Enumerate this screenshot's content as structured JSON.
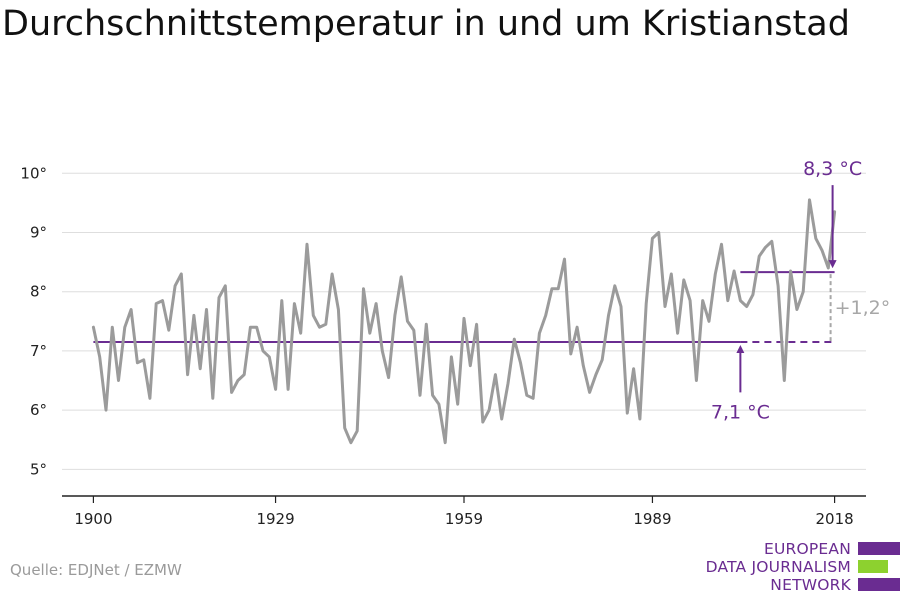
{
  "chart_data": {
    "type": "line",
    "title": "Durchschnittstemperatur in und um Kristianstad",
    "xlabel": "",
    "ylabel": "",
    "x": [
      1900,
      1901,
      1902,
      1903,
      1904,
      1905,
      1906,
      1907,
      1908,
      1909,
      1910,
      1911,
      1912,
      1913,
      1914,
      1915,
      1916,
      1917,
      1918,
      1919,
      1920,
      1921,
      1922,
      1923,
      1924,
      1925,
      1926,
      1927,
      1928,
      1929,
      1930,
      1931,
      1932,
      1933,
      1934,
      1935,
      1936,
      1937,
      1938,
      1939,
      1940,
      1941,
      1942,
      1943,
      1944,
      1945,
      1946,
      1947,
      1948,
      1949,
      1950,
      1951,
      1952,
      1953,
      1954,
      1955,
      1956,
      1957,
      1958,
      1959,
      1960,
      1961,
      1962,
      1963,
      1964,
      1965,
      1966,
      1967,
      1968,
      1969,
      1970,
      1971,
      1972,
      1973,
      1974,
      1975,
      1976,
      1977,
      1978,
      1979,
      1980,
      1981,
      1982,
      1983,
      1984,
      1985,
      1986,
      1987,
      1988,
      1989,
      1990,
      1991,
      1992,
      1993,
      1994,
      1995,
      1996,
      1997,
      1998,
      1999,
      2000,
      2001,
      2002,
      2003,
      2004,
      2005,
      2006,
      2007,
      2008,
      2009,
      2010,
      2011,
      2012,
      2013,
      2014,
      2015,
      2016,
      2017,
      2018
    ],
    "series": [
      {
        "name": "",
        "values": [
          7.4,
          6.9,
          6.0,
          7.4,
          6.5,
          7.4,
          7.7,
          6.8,
          6.85,
          6.2,
          7.8,
          7.85,
          7.35,
          8.1,
          8.3,
          6.6,
          7.6,
          6.7,
          7.7,
          6.2,
          7.9,
          8.1,
          6.3,
          6.5,
          6.6,
          7.4,
          7.4,
          7.0,
          6.9,
          6.35,
          7.85,
          6.35,
          7.8,
          7.3,
          8.8,
          7.6,
          7.4,
          7.45,
          8.3,
          7.7,
          5.7,
          5.45,
          5.65,
          8.05,
          7.3,
          7.8,
          7.0,
          6.55,
          7.6,
          8.25,
          7.5,
          7.35,
          6.25,
          7.45,
          6.25,
          6.1,
          5.45,
          6.9,
          6.1,
          7.55,
          6.75,
          7.45,
          5.8,
          6.0,
          6.6,
          5.85,
          6.45,
          7.2,
          6.8,
          6.25,
          6.2,
          7.3,
          7.6,
          8.05,
          8.05,
          8.55,
          6.95,
          7.4,
          6.75,
          6.3,
          6.6,
          6.85,
          7.6,
          8.1,
          7.75,
          5.95,
          6.7,
          5.85,
          7.8,
          8.9,
          9.0,
          7.75,
          8.3,
          7.3,
          8.2,
          7.85,
          6.5,
          7.85,
          7.5,
          8.3,
          8.8,
          7.85,
          8.35,
          7.85,
          7.75,
          7.95,
          8.6,
          8.75,
          8.85,
          8.1,
          6.5,
          8.35,
          7.7,
          8.0,
          9.55,
          8.9,
          8.7,
          8.4,
          9.35
        ]
      }
    ],
    "ylim": [
      4.55,
      10.9
    ],
    "xlim": [
      1895,
      2023
    ],
    "y_ticks": [
      5,
      6,
      7,
      8,
      9,
      10
    ],
    "y_tick_labels": [
      "5°",
      "6°",
      "7°",
      "8°",
      "9°",
      "10°"
    ],
    "x_ticks": [
      1900,
      1929,
      1959,
      1989,
      2018
    ],
    "x_tick_labels": [
      "1900",
      "1929",
      "1959",
      "1989",
      "2018"
    ],
    "grid": "horizontal",
    "reference_lines": [
      {
        "label": "7,1 °C",
        "value": 7.15,
        "x_start": 1900,
        "x_solid_end": 2003,
        "x_end": 2018
      },
      {
        "label": "8,3 °C",
        "value": 8.33,
        "x_start": 2003,
        "x_end": 2018
      }
    ],
    "difference_label": "+1,2°",
    "colors": {
      "line": "#9b9b9b",
      "reference": "#6a2c91",
      "difference": "#a7a7a7",
      "grid": "#dedede",
      "axis": "#222222"
    }
  },
  "footer": {
    "source": "Quelle: EDJNet / EZMW"
  },
  "logo": {
    "lines": [
      "EUROPEAN",
      "DATA JOURNALISM",
      "NETWORK"
    ],
    "colors": {
      "purple": "#6a2c91",
      "green": "#8dd12f"
    }
  }
}
